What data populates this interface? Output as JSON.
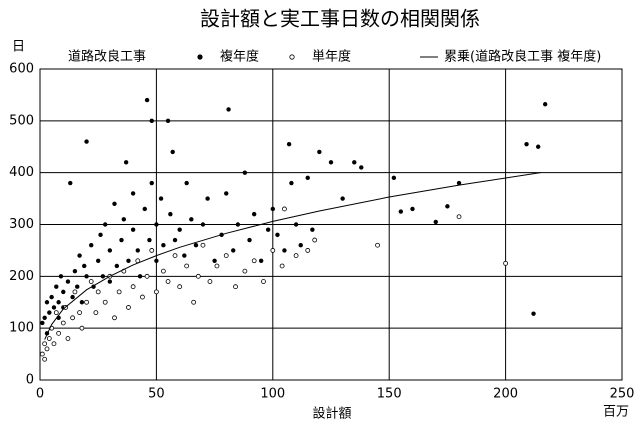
{
  "chart_data": {
    "type": "scatter",
    "title": "設計額と実工事日数の相関関係",
    "y_label": "日",
    "x_label": "設計額",
    "x_unit": "百万",
    "legend_title": "道路改良工事",
    "xlim": [
      0,
      250
    ],
    "ylim": [
      0,
      600
    ],
    "xticks": [
      0,
      50,
      100,
      150,
      200,
      250
    ],
    "yticks": [
      0,
      100,
      200,
      300,
      400,
      500,
      600
    ],
    "grid": true,
    "series": [
      {
        "name": "複年度",
        "color": "#000000",
        "marker": "filled",
        "x": [
          1,
          2,
          3,
          3,
          4,
          5,
          5,
          6,
          7,
          8,
          8,
          9,
          10,
          10,
          12,
          13,
          14,
          15,
          16,
          17,
          18,
          19,
          20,
          20,
          22,
          23,
          25,
          26,
          27,
          28,
          30,
          30,
          32,
          33,
          35,
          36,
          37,
          38,
          40,
          40,
          42,
          43,
          45,
          46,
          47,
          48,
          48,
          50,
          50,
          52,
          53,
          55,
          56,
          57,
          58,
          60,
          62,
          63,
          65,
          67,
          70,
          72,
          75,
          78,
          80,
          81,
          83,
          85,
          88,
          90,
          92,
          95,
          98,
          100,
          102,
          105,
          107,
          108,
          110,
          112,
          115,
          117,
          120,
          125,
          130,
          135,
          138,
          152,
          155,
          160,
          170,
          175,
          180,
          209,
          212,
          214,
          217
        ],
        "values": [
          110,
          120,
          90,
          150,
          130,
          160,
          100,
          140,
          180,
          150,
          120,
          200,
          170,
          140,
          190,
          380,
          160,
          210,
          180,
          240,
          150,
          220,
          460,
          200,
          260,
          180,
          230,
          280,
          200,
          300,
          250,
          190,
          340,
          220,
          270,
          310,
          420,
          230,
          290,
          360,
          250,
          200,
          330,
          540,
          270,
          500,
          380,
          300,
          230,
          350,
          260,
          500,
          320,
          440,
          270,
          290,
          240,
          380,
          310,
          260,
          300,
          350,
          230,
          280,
          360,
          522,
          250,
          300,
          400,
          270,
          320,
          230,
          290,
          330,
          280,
          250,
          455,
          380,
          300,
          260,
          390,
          290,
          440,
          420,
          350,
          420,
          410,
          390,
          325,
          330,
          305,
          335,
          380,
          455,
          128,
          450,
          532
        ]
      },
      {
        "name": "単年度",
        "color": "#000000",
        "marker": "hollow",
        "x": [
          1,
          2,
          2,
          3,
          4,
          5,
          6,
          7,
          8,
          10,
          11,
          12,
          14,
          15,
          17,
          18,
          20,
          22,
          24,
          25,
          28,
          30,
          32,
          34,
          36,
          38,
          40,
          42,
          44,
          46,
          48,
          50,
          53,
          55,
          58,
          60,
          63,
          66,
          68,
          70,
          73,
          76,
          80,
          84,
          88,
          92,
          96,
          100,
          104,
          105,
          110,
          115,
          118,
          145,
          180,
          200
        ],
        "values": [
          50,
          40,
          70,
          60,
          80,
          100,
          70,
          130,
          90,
          110,
          140,
          80,
          120,
          170,
          130,
          100,
          150,
          190,
          130,
          170,
          150,
          200,
          120,
          170,
          210,
          140,
          180,
          230,
          160,
          200,
          250,
          170,
          210,
          190,
          240,
          180,
          220,
          150,
          200,
          260,
          190,
          220,
          240,
          180,
          210,
          230,
          190,
          250,
          220,
          330,
          240,
          250,
          270,
          260,
          315,
          225
        ]
      },
      {
        "name": "累乗(道路改良工事 複年度)",
        "color": "#000000",
        "marker": "line",
        "x": [
          2,
          5,
          10,
          20,
          30,
          40,
          50,
          60,
          80,
          100,
          120,
          150,
          180,
          215
        ],
        "values": [
          78,
          107,
          137,
          174,
          200,
          222,
          240,
          256,
          283,
          306,
          326,
          353,
          376,
          400
        ]
      }
    ]
  }
}
